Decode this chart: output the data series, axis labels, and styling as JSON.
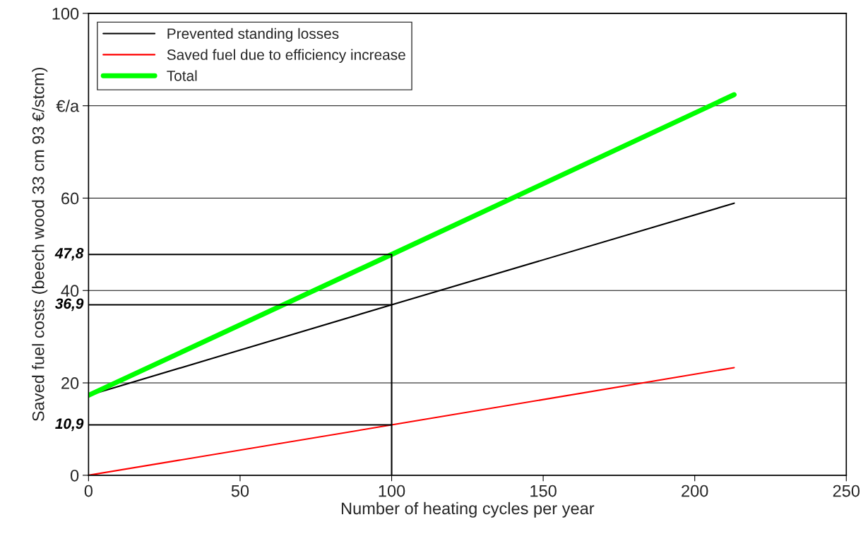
{
  "chart_data": {
    "type": "line",
    "xlabel": "Number of heating cycles per year",
    "ylabel": "Saved fuel costs (beech wood 33 cm 93 €/stcm)",
    "xlim": [
      0,
      250
    ],
    "xticks": [
      0,
      50,
      100,
      150,
      200,
      250
    ],
    "ylim": [
      0,
      100
    ],
    "yticks": [
      0,
      20,
      40,
      60,
      {
        "value": 80,
        "label": "€/a"
      },
      100
    ],
    "grid": "y",
    "legend": "top left",
    "series": [
      {
        "name": "Prevented standing losses",
        "color": "#000000",
        "x": [
          0,
          100,
          213
        ],
        "values": [
          17.3,
          36.9,
          58.9
        ]
      },
      {
        "name": "Saved fuel due to efficiency increase",
        "color": "#ff0000",
        "x": [
          0,
          100,
          213
        ],
        "values": [
          0,
          10.9,
          23.3
        ]
      },
      {
        "name": "Total",
        "color": "#00ff00",
        "x": [
          0,
          100,
          213
        ],
        "values": [
          17.3,
          47.8,
          82.4
        ]
      },
      {
        "name": "47,8",
        "color": "#000000",
        "x": [
          0,
          100,
          100
        ],
        "values": [
          47.8,
          47.8,
          0
        ]
      },
      {
        "name": "36,9",
        "color": "#000000",
        "x": [
          0,
          100
        ],
        "values": [
          36.9,
          36.9
        ]
      },
      {
        "name": "10,9",
        "color": "#000000",
        "x": [
          0,
          100
        ],
        "values": [
          10.9,
          10.9
        ]
      }
    ]
  }
}
